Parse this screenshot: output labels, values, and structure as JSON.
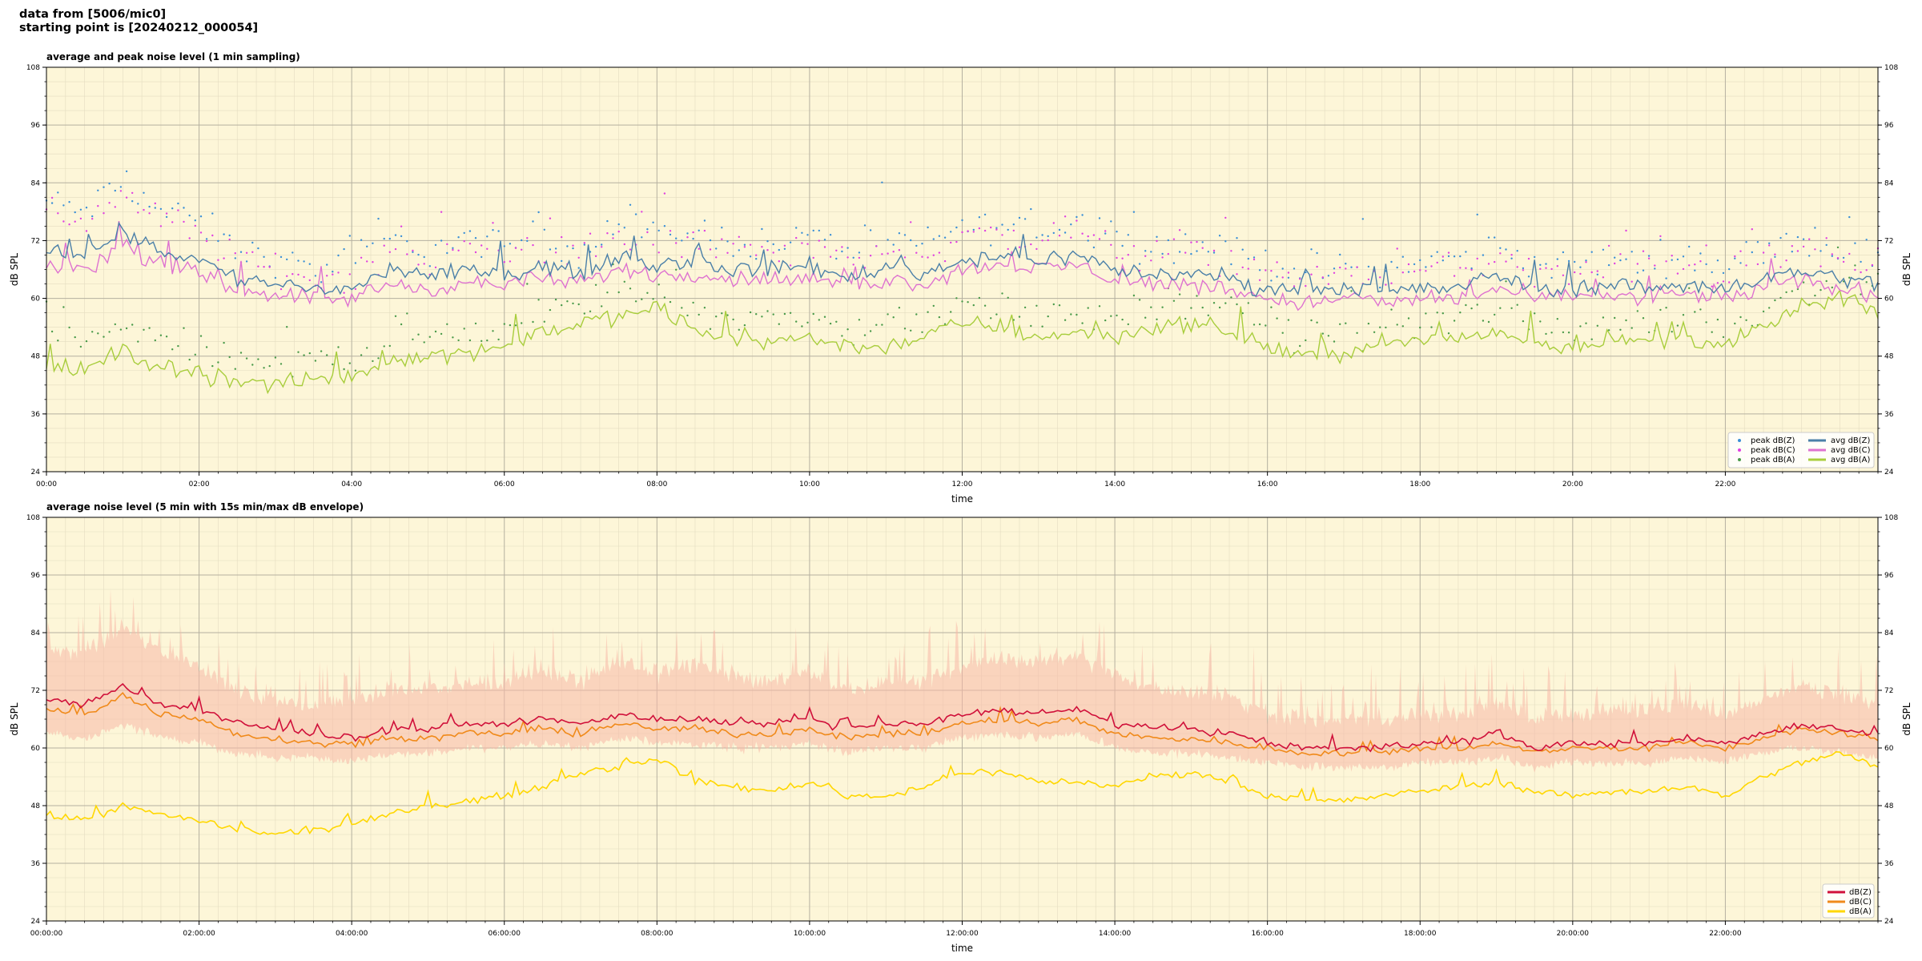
{
  "header": {
    "line1": "data from [5006/mic0]",
    "line2": "starting point is [20240212_000054]"
  },
  "colors": {
    "plot_background": "#fdf6d8",
    "peak_z": "#3a8fd6",
    "peak_c": "#e040e0",
    "peak_a": "#4a9a4a",
    "avg_z": "#4a7fa8",
    "avg_c": "#de72d0",
    "avg_a": "#a8cd3c",
    "z": "#d0103a",
    "c": "#f08a1a",
    "a": "#ffd700",
    "envelope": "#f7b8a8"
  },
  "chart_data": [
    {
      "type": "line",
      "title": "average and peak noise level (1 min sampling)",
      "xlabel": "time",
      "ylabel": "dB SPL",
      "ylim": [
        24,
        108
      ],
      "yticks": [
        24,
        36,
        48,
        60,
        72,
        84,
        96,
        108
      ],
      "xlim_hours": [
        0,
        24
      ],
      "xticks_hours": [
        0,
        2,
        4,
        6,
        8,
        10,
        12,
        14,
        16,
        18,
        20,
        22
      ],
      "xtick_labels": [
        "00:00",
        "02:00",
        "04:00",
        "06:00",
        "08:00",
        "10:00",
        "12:00",
        "14:00",
        "16:00",
        "18:00",
        "20:00",
        "22:00"
      ],
      "grid": true,
      "legend_position": "bottom-right",
      "legend": [
        "peak dB(Z)",
        "peak dB(C)",
        "peak dB(A)",
        "avg dB(Z)",
        "avg dB(C)",
        "avg dB(A)"
      ],
      "x_hours": [
        0,
        0.5,
        1,
        1.5,
        2,
        2.5,
        3,
        3.5,
        4,
        4.5,
        5,
        5.5,
        6,
        6.5,
        7,
        7.5,
        8,
        8.5,
        9,
        9.5,
        10,
        10.5,
        11,
        11.5,
        12,
        12.5,
        13,
        13.5,
        14,
        14.5,
        15,
        15.5,
        16,
        16.5,
        17,
        17.5,
        18,
        18.5,
        19,
        19.5,
        20,
        20.5,
        21,
        21.5,
        22,
        22.5,
        23,
        23.5,
        24
      ],
      "series": [
        {
          "name": "avg dB(Z)",
          "values": [
            70,
            69,
            74,
            70,
            68,
            64,
            63,
            62,
            62,
            66,
            64,
            66,
            65,
            67,
            65,
            69,
            67,
            68,
            66,
            66,
            67,
            64,
            67,
            65,
            68,
            69,
            68,
            69,
            66,
            65,
            65,
            64,
            62,
            62,
            62,
            61,
            62,
            62,
            65,
            62,
            62,
            63,
            62,
            63,
            62,
            64,
            66,
            64,
            63
          ]
        },
        {
          "name": "avg dB(C)",
          "values": [
            67,
            66,
            71,
            67,
            65,
            62,
            61,
            60,
            60,
            63,
            62,
            63,
            63,
            64,
            63,
            66,
            65,
            65,
            64,
            64,
            64,
            62,
            64,
            63,
            66,
            67,
            66,
            67,
            64,
            63,
            63,
            62,
            60,
            59,
            60,
            59,
            60,
            60,
            62,
            60,
            60,
            61,
            60,
            61,
            60,
            62,
            64,
            62,
            61
          ]
        },
        {
          "name": "avg dB(A)",
          "values": [
            46,
            45,
            49,
            46,
            44,
            43,
            42,
            43,
            44,
            47,
            48,
            49,
            50,
            53,
            55,
            56,
            58,
            53,
            52,
            51,
            52,
            50,
            50,
            52,
            55,
            54,
            52,
            53,
            52,
            54,
            55,
            53,
            50,
            48,
            49,
            50,
            51,
            52,
            53,
            51,
            50,
            51,
            51,
            52,
            50,
            54,
            58,
            60,
            57
          ]
        },
        {
          "name": "peak dB(Z)",
          "values": [
            80,
            78,
            84,
            78,
            76,
            70,
            68,
            66,
            67,
            72,
            70,
            72,
            71,
            73,
            70,
            75,
            73,
            74,
            72,
            71,
            73,
            70,
            72,
            71,
            75,
            75,
            74,
            76,
            72,
            71,
            71,
            70,
            67,
            66,
            67,
            66,
            68,
            68,
            71,
            67,
            67,
            68,
            68,
            69,
            67,
            70,
            72,
            70,
            69
          ]
        },
        {
          "name": "peak dB(C)",
          "values": [
            78,
            76,
            82,
            76,
            74,
            68,
            66,
            64,
            65,
            70,
            68,
            70,
            69,
            71,
            68,
            73,
            71,
            72,
            70,
            69,
            71,
            68,
            70,
            69,
            73,
            73,
            72,
            74,
            70,
            69,
            69,
            68,
            65,
            64,
            65,
            64,
            66,
            66,
            69,
            65,
            65,
            66,
            66,
            67,
            65,
            68,
            70,
            68,
            67
          ]
        },
        {
          "name": "peak dB(A)",
          "values": [
            52,
            50,
            55,
            51,
            49,
            47,
            46,
            47,
            48,
            51,
            52,
            53,
            54,
            57,
            59,
            60,
            62,
            57,
            56,
            55,
            56,
            54,
            54,
            56,
            59,
            58,
            56,
            57,
            56,
            58,
            59,
            57,
            54,
            52,
            53,
            54,
            55,
            56,
            57,
            55,
            54,
            55,
            55,
            56,
            54,
            58,
            62,
            64,
            61
          ]
        }
      ]
    },
    {
      "type": "line",
      "title": "average noise level (5 min with 15s min/max dB envelope)",
      "xlabel": "time",
      "ylabel": "dB SPL",
      "ylim": [
        24,
        108
      ],
      "yticks": [
        24,
        36,
        48,
        60,
        72,
        84,
        96,
        108
      ],
      "xlim_hours": [
        0,
        24
      ],
      "xticks_hours": [
        0,
        2,
        4,
        6,
        8,
        10,
        12,
        14,
        16,
        18,
        20,
        22
      ],
      "xtick_labels": [
        "00:00:00",
        "02:00:00",
        "04:00:00",
        "06:00:00",
        "08:00:00",
        "10:00:00",
        "12:00:00",
        "14:00:00",
        "16:00:00",
        "18:00:00",
        "20:00:00",
        "22:00:00"
      ],
      "grid": true,
      "legend_position": "bottom-right",
      "legend": [
        "dB(Z)",
        "dB(C)",
        "dB(A)"
      ],
      "x_hours": [
        0,
        0.5,
        1,
        1.5,
        2,
        2.5,
        3,
        3.5,
        4,
        4.5,
        5,
        5.5,
        6,
        6.5,
        7,
        7.5,
        8,
        8.5,
        9,
        9.5,
        10,
        10.5,
        11,
        11.5,
        12,
        12.5,
        13,
        13.5,
        14,
        14.5,
        15,
        15.5,
        16,
        16.5,
        17,
        17.5,
        18,
        18.5,
        19,
        19.5,
        20,
        20.5,
        21,
        21.5,
        22,
        22.5,
        23,
        23.5,
        24
      ],
      "series": [
        {
          "name": "dB(Z)",
          "values": [
            70,
            69,
            73,
            69,
            68,
            65,
            64,
            63,
            62,
            64,
            64,
            65,
            65,
            66,
            65,
            67,
            66,
            66,
            65,
            65,
            66,
            64,
            65,
            65,
            67,
            68,
            67,
            68,
            65,
            64,
            64,
            63,
            61,
            60,
            60,
            60,
            61,
            61,
            63,
            60,
            61,
            61,
            61,
            62,
            61,
            63,
            65,
            64,
            63
          ]
        },
        {
          "name": "dB(C)",
          "values": [
            68,
            67,
            71,
            67,
            66,
            63,
            62,
            61,
            61,
            62,
            62,
            63,
            63,
            64,
            63,
            65,
            64,
            64,
            63,
            63,
            64,
            62,
            63,
            63,
            65,
            66,
            65,
            66,
            63,
            62,
            62,
            61,
            60,
            59,
            59,
            59,
            60,
            60,
            61,
            59,
            60,
            60,
            60,
            61,
            60,
            62,
            64,
            63,
            62
          ]
        },
        {
          "name": "dB(A)",
          "values": [
            46,
            45,
            48,
            46,
            45,
            43,
            42,
            43,
            44,
            46,
            48,
            49,
            50,
            52,
            55,
            56,
            58,
            53,
            52,
            51,
            53,
            50,
            50,
            52,
            55,
            55,
            53,
            53,
            52,
            54,
            55,
            53,
            50,
            49,
            49,
            50,
            51,
            52,
            53,
            51,
            50,
            51,
            51,
            52,
            50,
            54,
            57,
            59,
            56
          ]
        },
        {
          "name": "envelope max",
          "values": [
            80,
            80,
            85,
            80,
            77,
            72,
            70,
            69,
            70,
            72,
            72,
            73,
            74,
            76,
            74,
            78,
            76,
            77,
            75,
            74,
            76,
            72,
            74,
            74,
            77,
            79,
            78,
            80,
            75,
            72,
            72,
            71,
            67,
            66,
            66,
            66,
            67,
            67,
            70,
            66,
            67,
            68,
            68,
            69,
            67,
            70,
            73,
            71,
            70
          ]
        },
        {
          "name": "envelope min",
          "values": [
            63,
            62,
            65,
            62,
            61,
            59,
            58,
            58,
            57,
            59,
            59,
            60,
            60,
            61,
            60,
            62,
            61,
            61,
            60,
            60,
            61,
            59,
            60,
            60,
            62,
            63,
            62,
            63,
            60,
            59,
            59,
            58,
            57,
            56,
            56,
            56,
            57,
            57,
            58,
            56,
            57,
            57,
            57,
            58,
            57,
            59,
            60,
            59,
            58
          ]
        }
      ]
    }
  ]
}
